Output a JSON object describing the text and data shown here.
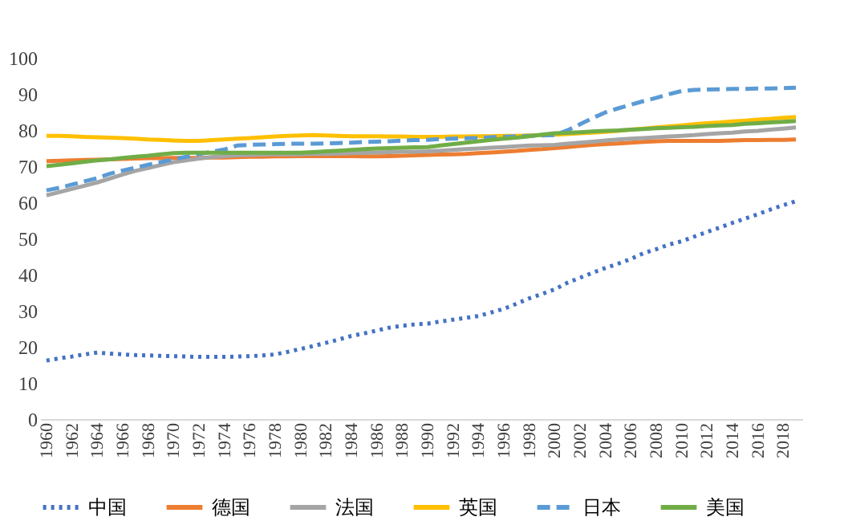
{
  "chart_data": {
    "type": "line",
    "legend": "bottom",
    "grid": false,
    "marker": "none",
    "categories": [
      "1960",
      null,
      "1962",
      null,
      "1964",
      null,
      "1966",
      null,
      "1968",
      null,
      "1970",
      null,
      "1972",
      null,
      "1974",
      null,
      "1976",
      null,
      "1978",
      null,
      "1980",
      null,
      "1982",
      null,
      "1984",
      null,
      "1986",
      null,
      "1988",
      null,
      "1990",
      null,
      "1992",
      null,
      "1994",
      null,
      "1996",
      null,
      "1998",
      null,
      "2000",
      null,
      "2002",
      null,
      "2004",
      null,
      "2006",
      null,
      "2008",
      null,
      "2010",
      null,
      "2012",
      null,
      "2014",
      null,
      "2016",
      null,
      "2018",
      null
    ],
    "ylim": [
      0,
      100
    ],
    "yticks": [
      0,
      10,
      20,
      30,
      40,
      50,
      60,
      70,
      80,
      90,
      100
    ],
    "series": [
      {
        "name": "中国",
        "color": "#4472c4",
        "line_style": "dotted",
        "values": [
          16.2,
          16.8,
          17.3,
          17.9,
          18.4,
          18.1,
          17.9,
          17.7,
          17.6,
          17.5,
          17.4,
          17.3,
          17.2,
          17.2,
          17.2,
          17.3,
          17.4,
          17.6,
          17.9,
          18.6,
          19.4,
          20.2,
          21.1,
          22.0,
          23.0,
          23.7,
          24.5,
          25.3,
          25.8,
          26.2,
          26.4,
          27.0,
          27.5,
          28.0,
          28.5,
          29.5,
          30.5,
          31.9,
          33.4,
          34.6,
          35.9,
          37.7,
          39.1,
          40.5,
          41.8,
          43.0,
          44.3,
          45.9,
          47.0,
          48.3,
          49.2,
          50.5,
          51.8,
          53.0,
          54.3,
          55.5,
          56.7,
          58.0,
          59.2,
          60.3
        ]
      },
      {
        "name": "德国",
        "color": "#ed7d31",
        "line_style": "solid",
        "values": [
          71.4,
          71.5,
          71.6,
          71.7,
          71.8,
          71.9,
          72.0,
          72.1,
          72.2,
          72.2,
          72.3,
          72.3,
          72.3,
          72.4,
          72.4,
          72.5,
          72.6,
          72.6,
          72.7,
          72.7,
          72.8,
          72.8,
          72.8,
          72.8,
          72.8,
          72.7,
          72.7,
          72.8,
          72.9,
          73.0,
          73.1,
          73.2,
          73.3,
          73.4,
          73.6,
          73.8,
          74.0,
          74.2,
          74.5,
          74.7,
          75.0,
          75.3,
          75.6,
          75.9,
          76.1,
          76.3,
          76.5,
          76.7,
          76.9,
          77.0,
          77.0,
          77.0,
          77.0,
          77.0,
          77.1,
          77.2,
          77.2,
          77.3,
          77.3,
          77.4
        ]
      },
      {
        "name": "法国",
        "color": "#a5a5a5",
        "line_style": "solid",
        "values": [
          61.9,
          62.8,
          63.7,
          64.6,
          65.5,
          66.6,
          67.7,
          68.7,
          69.5,
          70.3,
          71.1,
          71.6,
          72.1,
          72.5,
          72.8,
          73.0,
          73.1,
          73.2,
          73.3,
          73.3,
          73.3,
          73.4,
          73.4,
          73.5,
          73.6,
          73.7,
          73.8,
          73.9,
          74.0,
          74.0,
          74.1,
          74.3,
          74.5,
          74.7,
          74.9,
          75.1,
          75.3,
          75.5,
          75.7,
          75.8,
          75.9,
          76.2,
          76.5,
          76.8,
          77.1,
          77.4,
          77.6,
          77.8,
          78.0,
          78.2,
          78.4,
          78.6,
          78.9,
          79.1,
          79.3,
          79.6,
          79.8,
          80.1,
          80.4,
          80.7
        ]
      },
      {
        "name": "英国",
        "color": "#ffc000",
        "line_style": "solid",
        "values": [
          78.4,
          78.4,
          78.3,
          78.1,
          78.0,
          77.9,
          77.8,
          77.6,
          77.4,
          77.3,
          77.1,
          77.0,
          77.0,
          77.2,
          77.4,
          77.6,
          77.8,
          78.0,
          78.2,
          78.4,
          78.5,
          78.6,
          78.5,
          78.4,
          78.3,
          78.3,
          78.3,
          78.2,
          78.2,
          78.1,
          78.1,
          78.1,
          78.2,
          78.2,
          78.3,
          78.3,
          78.4,
          78.4,
          78.5,
          78.6,
          78.7,
          78.9,
          79.1,
          79.3,
          79.5,
          79.8,
          80.1,
          80.4,
          80.7,
          81.0,
          81.3,
          81.6,
          81.9,
          82.1,
          82.4,
          82.6,
          82.9,
          83.1,
          83.4,
          83.6
        ]
      },
      {
        "name": "日本",
        "color": "#5b9bd5",
        "line_style": "dashed",
        "values": [
          63.3,
          64.0,
          64.9,
          65.8,
          66.7,
          67.9,
          68.8,
          69.6,
          70.4,
          71.1,
          71.9,
          72.6,
          73.3,
          74.0,
          74.6,
          75.7,
          75.9,
          76.0,
          76.1,
          76.2,
          76.2,
          76.2,
          76.3,
          76.4,
          76.5,
          76.7,
          76.8,
          76.9,
          77.1,
          77.2,
          77.3,
          77.5,
          77.6,
          77.7,
          77.8,
          78.0,
          78.1,
          78.3,
          78.4,
          78.5,
          78.6,
          79.9,
          81.6,
          83.3,
          84.9,
          86.0,
          87.0,
          88.0,
          88.9,
          89.9,
          90.8,
          91.1,
          91.2,
          91.3,
          91.4,
          91.4,
          91.5,
          91.5,
          91.6,
          91.7
        ]
      },
      {
        "name": "美国",
        "color": "#70ad47",
        "line_style": "solid",
        "values": [
          70.0,
          70.4,
          70.8,
          71.2,
          71.6,
          71.9,
          72.3,
          72.6,
          72.9,
          73.3,
          73.6,
          73.7,
          73.7,
          73.7,
          73.7,
          73.7,
          73.7,
          73.7,
          73.7,
          73.7,
          73.7,
          73.9,
          74.1,
          74.3,
          74.5,
          74.7,
          74.9,
          75.0,
          75.1,
          75.2,
          75.3,
          75.7,
          76.1,
          76.5,
          76.9,
          77.3,
          77.6,
          77.9,
          78.3,
          78.7,
          79.1,
          79.2,
          79.4,
          79.6,
          79.8,
          79.9,
          80.1,
          80.3,
          80.5,
          80.6,
          80.8,
          80.9,
          81.1,
          81.3,
          81.4,
          81.7,
          81.9,
          82.1,
          82.3,
          82.5
        ]
      }
    ]
  }
}
